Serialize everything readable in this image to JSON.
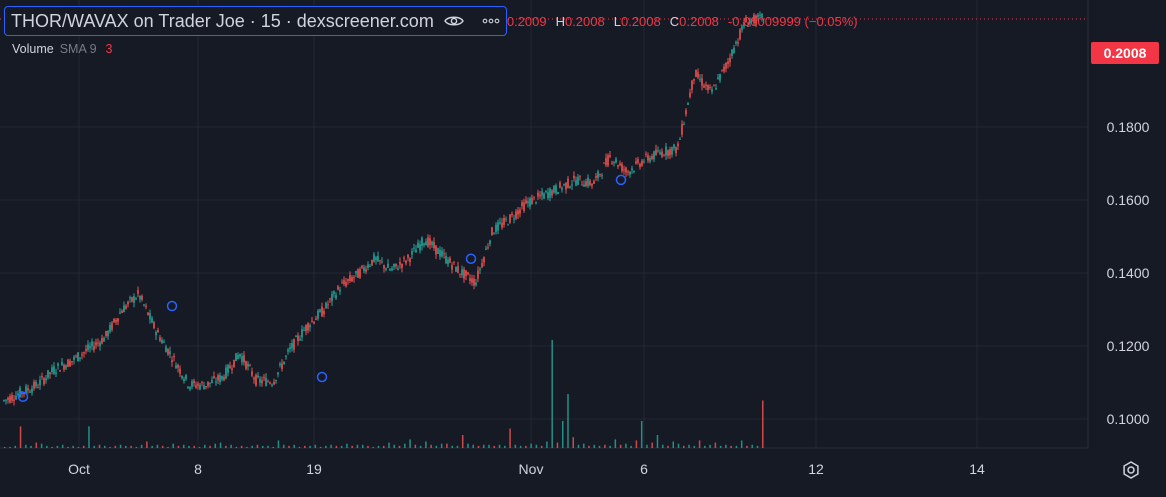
{
  "window": {
    "title": "THOR/WAVAX on Trader Joe · 15 · dexscreener.com"
  },
  "legend": {
    "ohlc": [
      {
        "key": "",
        "value": "0.2009"
      },
      {
        "key": "H",
        "value": "0.2008"
      },
      {
        "key": "L",
        "value": "0.2008"
      },
      {
        "key": "C",
        "value": "0.2008"
      },
      {
        "key": "",
        "value": "-0.00009999 (−0.05%)"
      }
    ],
    "volume_label": "Volume",
    "sma_label": "SMA 9",
    "sma_value": "3"
  },
  "last_price_label": "0.2008",
  "colors": {
    "up": "#26a69a",
    "down": "#ef5350",
    "marker": "#2962ff",
    "background": "#161a25",
    "grid": "#232733",
    "text": "#d1d4dc"
  },
  "icons": [
    "eye-icon",
    "more-horizontal-icon",
    "gear-icon"
  ],
  "chart_data": {
    "type": "candlestick",
    "title": "THOR/WAVAX on Trader Joe · 15 · dexscreener.com",
    "x_ticks": [
      "Oct",
      "8",
      "19",
      "Nov",
      "6",
      "12",
      "14"
    ],
    "y_ticks": [
      "0.2008",
      "0.1800",
      "0.1600",
      "0.1400",
      "0.1200",
      "0.1000"
    ],
    "ylim": [
      0.092,
      0.2046
    ],
    "last_price": 0.2008,
    "grid": true,
    "legend": "top-left",
    "series": [
      {
        "name": "price",
        "points": [
          [
            0.104,
            0.103
          ],
          [
            0.106,
            0.105
          ],
          [
            0.108,
            0.107
          ],
          [
            0.112,
            0.111
          ],
          [
            0.114,
            0.11
          ],
          [
            0.117,
            0.116
          ],
          [
            0.12,
            0.121
          ],
          [
            0.127,
            0.128
          ],
          [
            0.131,
            0.127
          ],
          [
            0.122,
            0.121
          ],
          [
            0.115,
            0.112
          ],
          [
            0.108,
            0.109
          ],
          [
            0.108,
            0.107
          ],
          [
            0.11,
            0.112
          ],
          [
            0.116,
            0.114
          ],
          [
            0.109,
            0.108
          ],
          [
            0.109,
            0.111
          ],
          [
            0.117,
            0.118
          ],
          [
            0.123,
            0.122
          ],
          [
            0.127,
            0.128
          ],
          [
            0.133,
            0.132
          ],
          [
            0.136,
            0.135
          ],
          [
            0.14,
            0.141
          ],
          [
            0.137,
            0.136
          ],
          [
            0.14,
            0.142
          ],
          [
            0.145,
            0.144
          ],
          [
            0.141,
            0.14
          ],
          [
            0.137,
            0.136
          ],
          [
            0.134,
            0.135
          ],
          [
            0.147,
            0.146
          ],
          [
            0.15,
            0.151
          ],
          [
            0.154,
            0.153
          ],
          [
            0.156,
            0.156
          ],
          [
            0.158,
            0.158
          ],
          [
            0.16,
            0.159
          ],
          [
            0.159,
            0.16
          ],
          [
            0.166,
            0.166
          ],
          [
            0.162,
            0.162
          ],
          [
            0.165,
            0.164
          ],
          [
            0.167,
            0.166
          ],
          [
            0.168,
            0.17
          ],
          [
            0.187,
            0.186
          ],
          [
            0.182,
            0.181
          ],
          [
            0.19,
            0.191
          ],
          [
            0.2,
            0.2009
          ],
          [
            0.2009,
            0.2008
          ]
        ],
        "markers": [
          0.105,
          0.128,
          0.11,
          0.14,
          0.16
        ]
      },
      {
        "name": "Volume",
        "values": [
          1,
          1,
          2,
          20,
          3,
          2,
          5,
          4,
          2,
          1,
          2,
          3,
          1,
          2,
          1,
          2,
          20,
          2,
          3,
          2,
          1,
          2,
          3,
          2,
          2,
          1,
          3,
          6,
          2,
          3,
          2,
          1,
          4,
          2,
          3,
          2,
          2,
          1,
          3,
          2,
          4,
          5,
          2,
          3,
          1,
          2,
          1,
          2,
          3,
          2,
          2,
          1,
          7,
          3,
          2,
          3,
          1,
          2,
          2,
          3,
          1,
          2,
          3,
          2,
          2,
          4,
          2,
          3,
          3,
          2,
          1,
          2,
          2,
          5,
          3,
          2,
          4,
          8,
          3,
          2,
          6,
          3,
          2,
          4,
          4,
          2,
          2,
          12,
          4,
          3,
          2,
          3,
          3,
          2,
          3,
          2,
          18,
          3,
          2,
          2,
          4,
          3,
          2,
          6,
          100,
          5,
          25,
          50,
          10,
          3,
          4,
          2,
          3,
          2,
          3,
          2,
          8,
          3,
          4,
          2,
          7,
          25,
          3,
          5,
          12,
          3,
          2,
          6,
          4,
          2,
          3,
          2,
          7,
          2,
          3,
          5,
          2,
          3,
          2,
          2,
          7,
          2,
          3,
          2,
          44
        ]
      }
    ]
  }
}
